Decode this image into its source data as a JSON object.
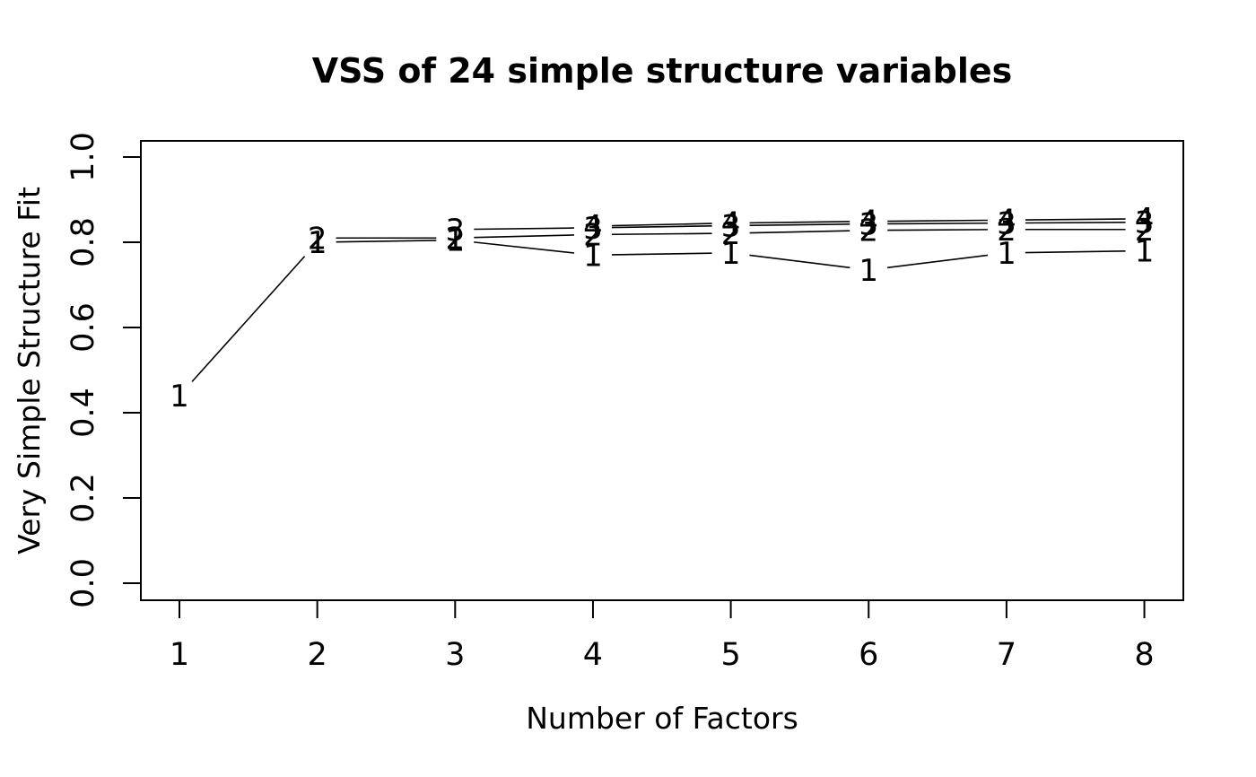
{
  "figure": {
    "title": "VSS of 24 simple structure variables",
    "xlabel": "Number of Factors",
    "ylabel": "Very Simple Structure Fit"
  },
  "chart_data": {
    "type": "line",
    "title": "VSS of 24 simple structure variables",
    "xlabel": "Number of Factors",
    "ylabel": "Very Simple Structure Fit",
    "x": [
      1,
      2,
      3,
      4,
      5,
      6,
      7,
      8
    ],
    "x_tick_labels": [
      "1",
      "2",
      "3",
      "4",
      "5",
      "6",
      "7",
      "8"
    ],
    "y_ticks": [
      0.0,
      0.2,
      0.4,
      0.6,
      0.8,
      1.0
    ],
    "y_tick_labels": [
      "0.0",
      "0.2",
      "0.4",
      "0.6",
      "0.8",
      "1.0"
    ],
    "xlim": [
      1,
      8
    ],
    "ylim": [
      0.0,
      1.0
    ],
    "grid": false,
    "legend_position": "none",
    "marker_style": "each point drawn as its complexity digit, lines broken around points (R type='b')",
    "colors": {
      "line": "#000000",
      "text": "#000000",
      "background": "#ffffff"
    },
    "series": [
      {
        "name": "VSS complexity 1",
        "label": "1",
        "start_x": 1,
        "values": [
          0.44,
          0.8,
          0.805,
          0.77,
          0.775,
          0.735,
          0.775,
          0.78
        ]
      },
      {
        "name": "VSS complexity 2",
        "label": "2",
        "start_x": 2,
        "values": [
          0.81,
          0.81,
          0.818,
          0.821,
          0.828,
          0.83,
          0.83
        ]
      },
      {
        "name": "VSS complexity 3",
        "label": "3",
        "start_x": 3,
        "values": [
          0.83,
          0.834,
          0.839,
          0.843,
          0.845,
          0.847
        ]
      },
      {
        "name": "VSS complexity 4",
        "label": "4",
        "start_x": 4,
        "values": [
          0.838,
          0.845,
          0.849,
          0.852,
          0.855
        ]
      }
    ]
  }
}
